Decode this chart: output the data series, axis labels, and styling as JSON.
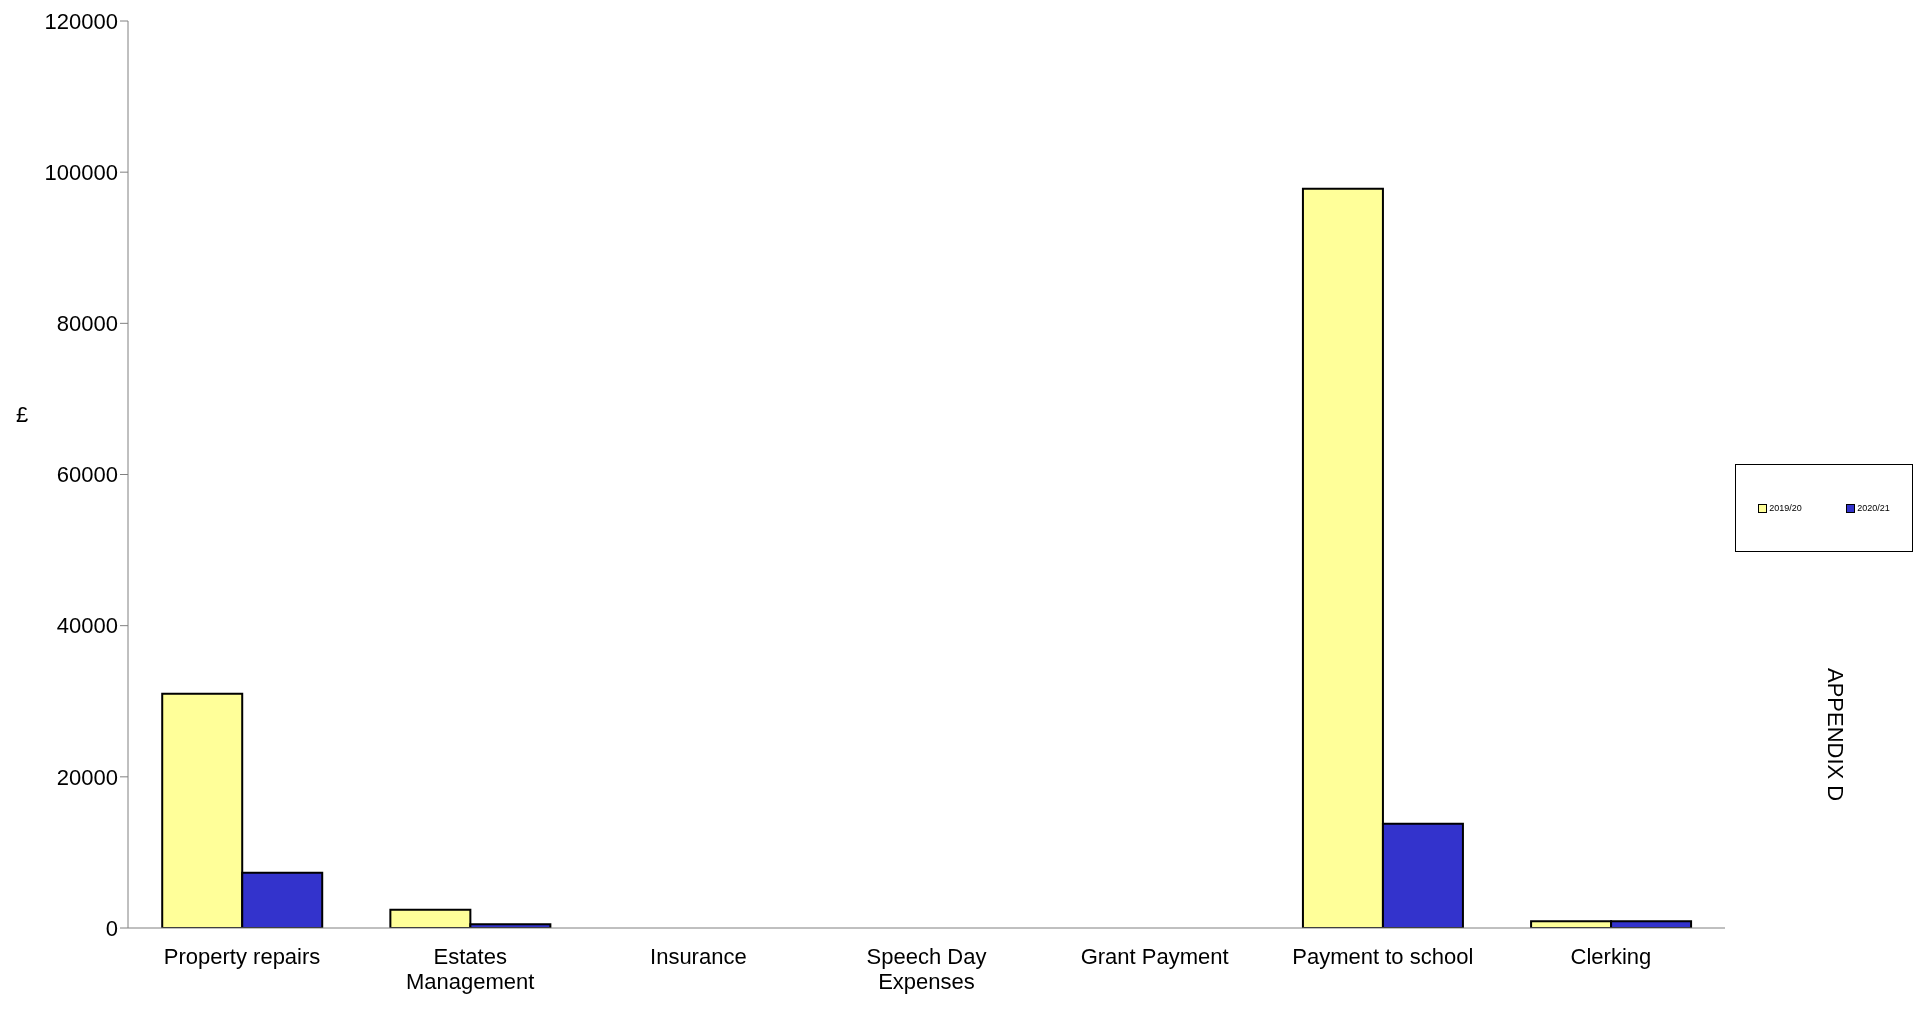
{
  "chart_data": {
    "type": "bar",
    "ylabel": "£",
    "categories": [
      "Property repairs",
      "Estates Management",
      "Insurance",
      "Speech Day Expenses",
      "Grant Payment",
      "Payment to school",
      "Clerking"
    ],
    "series": [
      {
        "name": "2019/20",
        "color": "#ffff99",
        "values": [
          31000,
          2400,
          0,
          0,
          0,
          97800,
          900
        ]
      },
      {
        "name": "2020/21",
        "color": "#3333cc",
        "values": [
          7300,
          500,
          0,
          0,
          0,
          13800,
          900
        ]
      }
    ],
    "ylim": [
      0,
      120000
    ],
    "yticks": [
      0,
      20000,
      40000,
      60000,
      80000,
      100000,
      120000
    ],
    "legend": "right",
    "annotations": [
      "APPENDIX D"
    ]
  }
}
